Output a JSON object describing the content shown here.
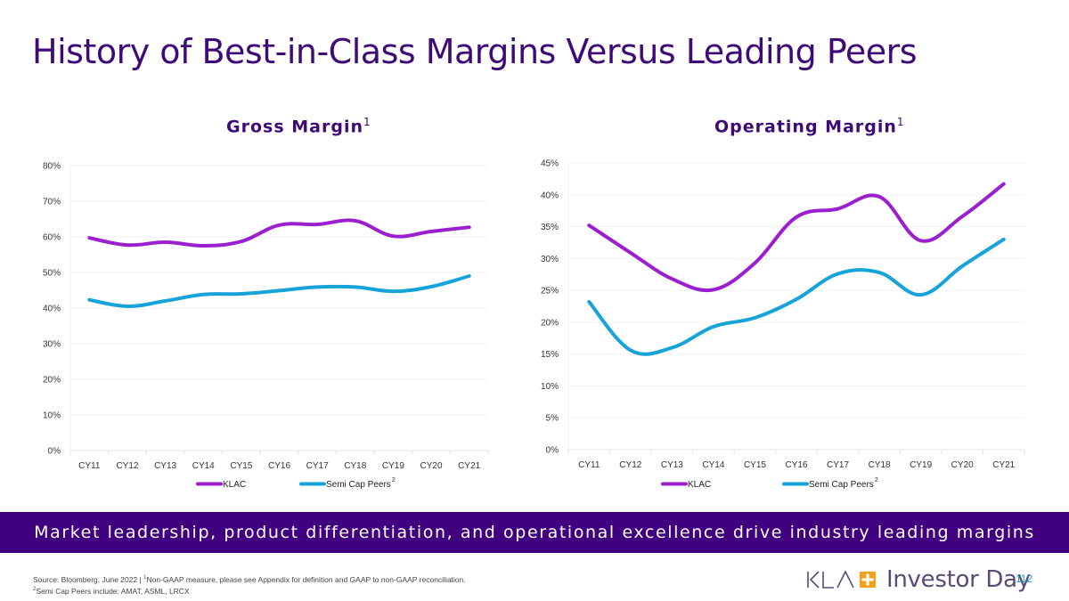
{
  "slide": {
    "title": "History of Best-in-Class Margins Versus Leading Peers",
    "banner": "Market leadership, product differentiation, and operational excellence drive industry leading margins",
    "footnote_line1_a": "Source: Bloomberg, June 2022  |  ",
    "footnote_line1_sup": "1",
    "footnote_line1_b": "Non-GAAP measure, please see Appendix for definition and GAAP to non-GAAP reconciliation.",
    "footnote_line2_sup": "2",
    "footnote_line2": "Semi Cap Peers include: AMAT, ASML, LRCX",
    "logo_brand": "KLA",
    "logo_text": "Investor Day",
    "page_number": "112",
    "colors": {
      "title": "#3d0a78",
      "banner": "#400080",
      "klac": "#9b1fcf",
      "peers": "#16a3da",
      "logo_accent": "#f3a31b",
      "page_number": "#1aa0d6"
    }
  },
  "chart_data": [
    {
      "type": "line",
      "title": "Gross Margin",
      "title_sup": "1",
      "xlabel": "",
      "ylabel": "",
      "categories": [
        "CY11",
        "CY12",
        "CY13",
        "CY14",
        "CY15",
        "CY16",
        "CY17",
        "CY18",
        "CY19",
        "CY20",
        "CY21"
      ],
      "ylim": [
        0,
        80
      ],
      "yticks": [
        0,
        10,
        20,
        30,
        40,
        50,
        60,
        70,
        80
      ],
      "ytick_labels": [
        "0%",
        "10%",
        "20%",
        "30%",
        "40%",
        "50%",
        "60%",
        "70%",
        "80%"
      ],
      "grid": true,
      "legend_position": "bottom",
      "series": [
        {
          "name": "KLAC",
          "name_sup": "",
          "color": "#9b1fcf",
          "values": [
            59.7,
            57.7,
            58.5,
            57.5,
            58.7,
            63.3,
            63.5,
            64.5,
            60.2,
            61.5,
            62.7
          ]
        },
        {
          "name": "Semi Cap Peers",
          "name_sup": "2",
          "color": "#16a3da",
          "values": [
            42.3,
            40.5,
            42.0,
            43.8,
            44.0,
            44.9,
            45.9,
            45.9,
            44.7,
            46.0,
            49.0
          ]
        }
      ]
    },
    {
      "type": "line",
      "title": "Operating Margin",
      "title_sup": "1",
      "xlabel": "",
      "ylabel": "",
      "categories": [
        "CY11",
        "CY12",
        "CY13",
        "CY14",
        "CY15",
        "CY16",
        "CY17",
        "CY18",
        "CY19",
        "CY20",
        "CY21"
      ],
      "ylim": [
        0,
        45
      ],
      "yticks": [
        0,
        5,
        10,
        15,
        20,
        25,
        30,
        35,
        40,
        45
      ],
      "ytick_labels": [
        "0%",
        "5%",
        "10%",
        "15%",
        "20%",
        "25%",
        "30%",
        "35%",
        "40%",
        "45%"
      ],
      "grid": true,
      "legend_position": "bottom",
      "series": [
        {
          "name": "KLAC",
          "name_sup": "",
          "color": "#9b1fcf",
          "values": [
            35.2,
            30.9,
            26.8,
            25.1,
            29.3,
            36.5,
            37.8,
            39.7,
            32.8,
            36.6,
            41.7
          ]
        },
        {
          "name": "Semi Cap Peers",
          "name_sup": "2",
          "color": "#16a3da",
          "values": [
            23.2,
            15.6,
            16.0,
            19.3,
            20.7,
            23.6,
            27.6,
            27.8,
            24.3,
            28.8,
            33.0
          ]
        }
      ]
    }
  ]
}
